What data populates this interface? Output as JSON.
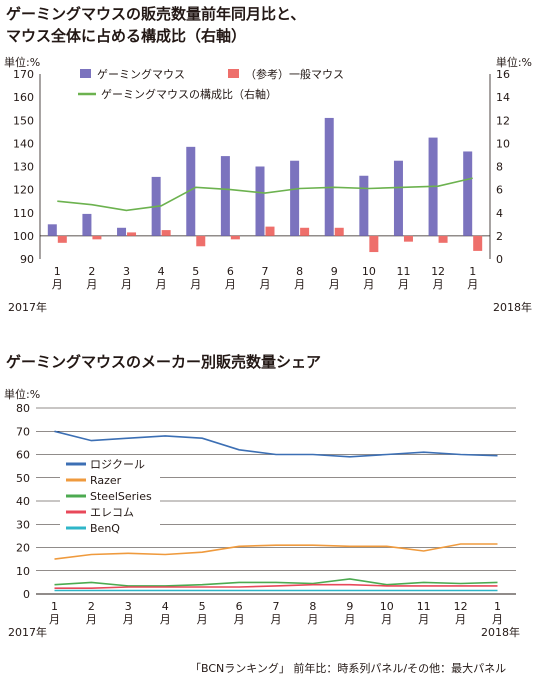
{
  "titles": {
    "chart1_line1": "ゲーミングマウスの販売数量前年同月比と、",
    "chart1_line2": "マウス全体に占める構成比（右軸）",
    "chart2": "ゲーミングマウスのメーカー別販売数量シェア"
  },
  "source_note": "「BCNランキング」 前年比：時系列パネル/その他：最大パネル",
  "chart_data": [
    {
      "type": "bar",
      "title": "ゲーミングマウスの販売数量前年同月比と、マウス全体に占める構成比（右軸）",
      "y_unit_left": "単位:%",
      "y_unit_right": "単位:%",
      "categories": [
        "1\n月",
        "2\n月",
        "3\n月",
        "4\n月",
        "5\n月",
        "6\n月",
        "7\n月",
        "8\n月",
        "9\n月",
        "10\n月",
        "11\n月",
        "12\n月",
        "1\n月"
      ],
      "year_labels": {
        "start": "2017年",
        "end": "2018年"
      },
      "ylim_left": [
        90,
        170
      ],
      "yticks_left": [
        90,
        100,
        110,
        120,
        130,
        140,
        150,
        160,
        170
      ],
      "ylim_right": [
        0,
        16
      ],
      "yticks_right": [
        0,
        2,
        4,
        6,
        8,
        10,
        12,
        14,
        16
      ],
      "series": [
        {
          "name": "ゲーミングマウス",
          "kind": "bar",
          "axis": "left",
          "color": "#7b73be",
          "values": [
            105,
            109.5,
            103.5,
            125.5,
            138.5,
            134.5,
            130,
            132.5,
            151,
            126,
            132.5,
            142.5,
            136.5
          ]
        },
        {
          "name": "（参考）一般マウス",
          "kind": "bar",
          "axis": "left",
          "color": "#ee6f6b",
          "values": [
            97,
            98.5,
            101.5,
            102.5,
            95.5,
            98.5,
            104,
            103.5,
            103.5,
            93,
            97.5,
            97,
            93.5
          ]
        },
        {
          "name": "ゲーミングマウスの構成比（右軸）",
          "kind": "line",
          "axis": "right",
          "color": "#6cb24f",
          "values": [
            5.0,
            4.7,
            4.2,
            4.6,
            6.2,
            6.0,
            5.7,
            6.1,
            6.2,
            6.1,
            6.2,
            6.3,
            7.0
          ]
        }
      ],
      "legend": "top"
    },
    {
      "type": "line",
      "title": "ゲーミングマウスのメーカー別販売数量シェア",
      "y_unit": "単位:%",
      "categories": [
        "1\n月",
        "2\n月",
        "3\n月",
        "4\n月",
        "5\n月",
        "6\n月",
        "7\n月",
        "8\n月",
        "9\n月",
        "10\n月",
        "11\n月",
        "12\n月",
        "1\n月"
      ],
      "year_labels": {
        "start": "2017年",
        "end": "2018年"
      },
      "ylim": [
        0,
        80
      ],
      "yticks": [
        0,
        10,
        20,
        30,
        40,
        50,
        60,
        70,
        80
      ],
      "grid": true,
      "series": [
        {
          "name": "ロジクール",
          "color": "#3c6fb4",
          "values": [
            70,
            66,
            67,
            68,
            67,
            62,
            60,
            60,
            59,
            60,
            61,
            60,
            59.5
          ]
        },
        {
          "name": "Razer",
          "color": "#ef9a3d",
          "values": [
            15,
            17,
            17.5,
            17,
            18,
            20.5,
            21,
            21,
            20.5,
            20.5,
            18.5,
            21.5,
            21.5
          ]
        },
        {
          "name": "SteelSeries",
          "color": "#4caa50",
          "values": [
            4,
            5,
            3.5,
            3.5,
            4,
            5,
            5,
            4.5,
            6.5,
            4,
            5,
            4.5,
            5
          ]
        },
        {
          "name": "エレコム",
          "color": "#e8485a",
          "values": [
            2.5,
            2.5,
            3,
            3,
            3,
            3,
            3.5,
            4,
            4,
            3.5,
            3.5,
            3.5,
            3.5
          ]
        },
        {
          "name": "BenQ",
          "color": "#2fb6c8",
          "values": [
            1.5,
            1.5,
            1.5,
            1.5,
            1.5,
            1.5,
            1.5,
            1.5,
            1.5,
            1.5,
            1.5,
            1.5,
            1.5
          ]
        }
      ],
      "legend": "left-middle"
    }
  ]
}
